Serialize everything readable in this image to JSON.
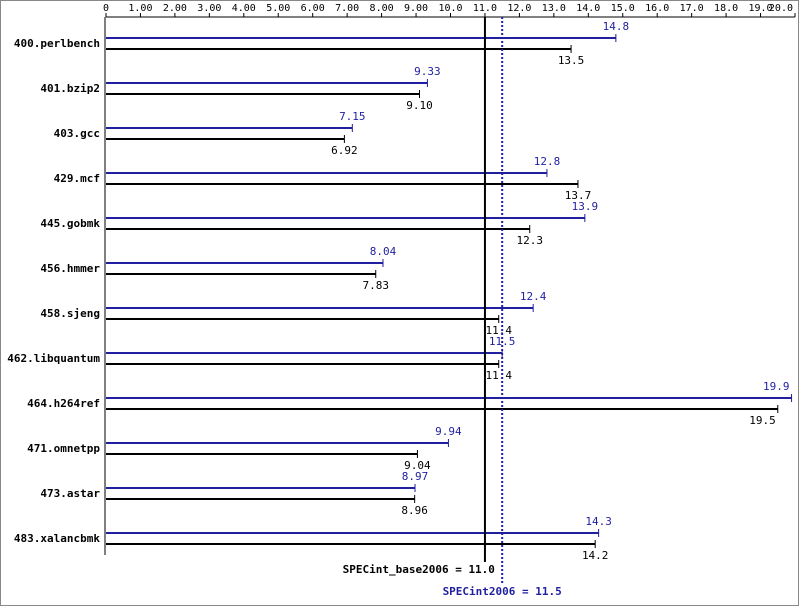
{
  "chart_data": {
    "type": "spec-bar",
    "categories": [
      "400.perlbench",
      "401.bzip2",
      "403.gcc",
      "429.mcf",
      "445.gobmk",
      "456.hmmer",
      "458.sjeng",
      "462.libquantum",
      "464.h264ref",
      "471.omnetpp",
      "473.astar",
      "483.xalancbmk"
    ],
    "series": [
      {
        "color": "#1f1fa0",
        "values": [
          14.8,
          9.33,
          7.15,
          12.8,
          13.9,
          8.04,
          12.4,
          11.5,
          19.9,
          9.94,
          8.97,
          14.3
        ],
        "value_labels": [
          "14.8",
          "9.33",
          "7.15",
          "12.8",
          "13.9",
          "8.04",
          "12.4",
          "11.5",
          "19.9",
          "9.94",
          "8.97",
          "14.3"
        ]
      },
      {
        "color": "#000000",
        "values": [
          13.5,
          9.1,
          6.92,
          13.7,
          12.3,
          7.83,
          11.4,
          11.4,
          19.5,
          9.04,
          8.96,
          14.2
        ],
        "value_labels": [
          "13.5",
          "9.10",
          "6.92",
          "13.7",
          "12.3",
          "7.83",
          "11.4",
          "11.4",
          "19.5",
          "9.04",
          "8.96",
          "14.2"
        ]
      }
    ],
    "xlim": [
      0,
      20
    ],
    "xticks": [
      0,
      {
        "value": 1,
        "label": "1.00"
      },
      {
        "value": 2,
        "label": "2.00"
      },
      {
        "value": 3,
        "label": "3.00"
      },
      {
        "value": 4,
        "label": "4.00"
      },
      {
        "value": 5,
        "label": "5.00"
      },
      {
        "value": 6,
        "label": "6.00"
      },
      {
        "value": 7,
        "label": "7.00"
      },
      {
        "value": 8,
        "label": "8.00"
      },
      {
        "value": 9,
        "label": "9.00"
      },
      {
        "value": 10,
        "label": "10.0"
      },
      {
        "value": 11,
        "label": "11.0"
      },
      {
        "value": 12,
        "label": "12.0"
      },
      {
        "value": 13,
        "label": "13.0"
      },
      {
        "value": 14,
        "label": "14.0"
      },
      {
        "value": 15,
        "label": "15.0"
      },
      {
        "value": 16,
        "label": "16.0"
      },
      {
        "value": 17,
        "label": "17.0"
      },
      {
        "value": 18,
        "label": "18.0"
      },
      {
        "value": 19,
        "label": "19.0"
      },
      {
        "value": 20,
        "label": "20.0"
      }
    ],
    "reference_lines": [
      {
        "label": "SPECint_base2006 = 11.0",
        "value": 11.0,
        "color": "#000000",
        "style": "solid"
      },
      {
        "label": "SPECint2006 = 11.5",
        "value": 11.5,
        "color": "#1f1fa0",
        "style": "dotted"
      }
    ]
  }
}
